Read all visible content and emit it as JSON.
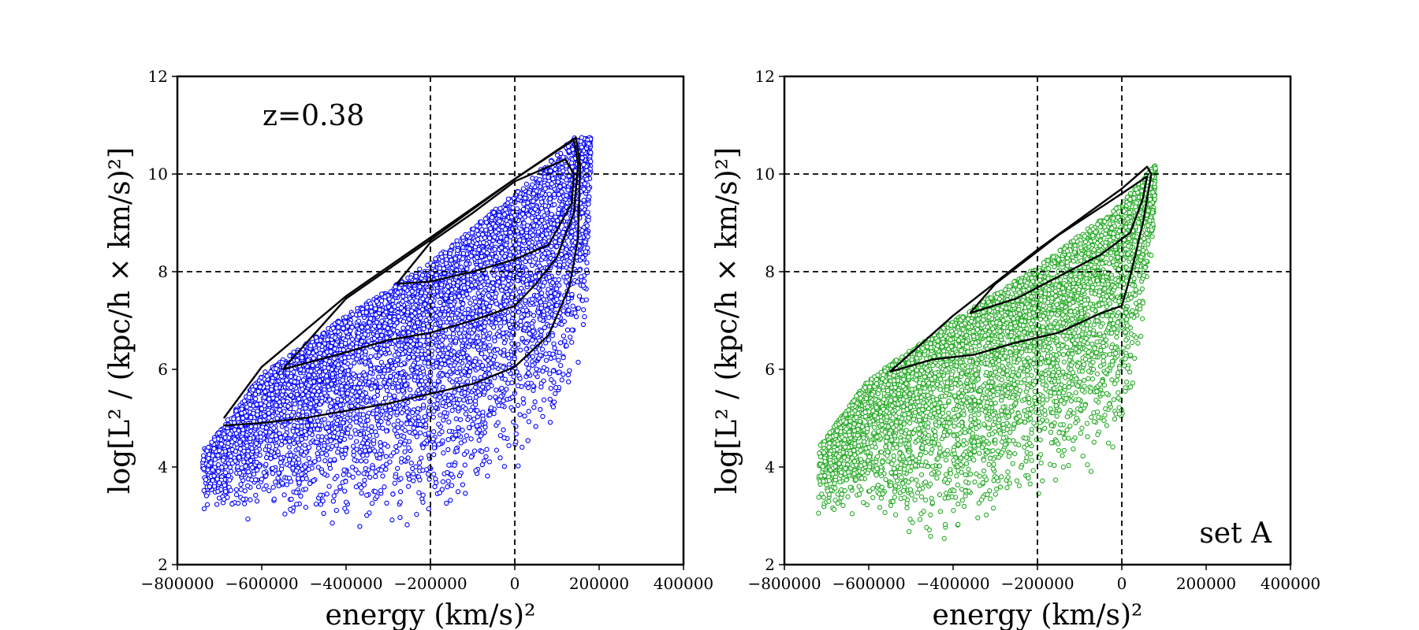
{
  "chart_data": [
    {
      "type": "scatter",
      "panel": "left",
      "marker_color": "#0000ff",
      "xlabel": "energy   (km/s)²",
      "ylabel": "log[L² / (kpc/h × km/s)²]",
      "xlim": [
        -800000,
        400000
      ],
      "ylim": [
        2,
        12
      ],
      "xticks": [
        -800000,
        -600000,
        -400000,
        -200000,
        0,
        200000,
        400000
      ],
      "xtick_labels": [
        "−800000",
        "−600000",
        "−400000",
        "−200000",
        "0",
        "200000",
        "400000"
      ],
      "yticks": [
        2,
        4,
        6,
        8,
        10,
        12
      ],
      "ytick_labels": [
        "2",
        "4",
        "6",
        "8",
        "10",
        "12"
      ],
      "reference_lines": {
        "x": [
          -200000,
          0
        ],
        "y": [
          8,
          10
        ]
      },
      "annotation": "z=0.38",
      "annotation_position": "top-left",
      "point_cloud": {
        "approx_points": 6000,
        "upper_envelope": [
          [
            -730000,
            4.4
          ],
          [
            -600000,
            5.9
          ],
          [
            -400000,
            7.1
          ],
          [
            -200000,
            8.2
          ],
          [
            0,
            9.6
          ],
          [
            100000,
            10.4
          ],
          [
            140000,
            10.75
          ]
        ],
        "lower_envelope": [
          [
            -730000,
            3.0
          ],
          [
            -600000,
            2.8
          ],
          [
            -400000,
            2.6
          ],
          [
            -200000,
            2.8
          ],
          [
            0,
            3.8
          ],
          [
            100000,
            4.6
          ],
          [
            170000,
            6.5
          ],
          [
            180000,
            10.0
          ]
        ],
        "min_x": -740000,
        "max_x": 180000
      },
      "contours": [
        [
          [
            -280000,
            7.75
          ],
          [
            -200000,
            7.8
          ],
          [
            -100000,
            8.0
          ],
          [
            0,
            8.25
          ],
          [
            80000,
            8.55
          ],
          [
            135000,
            9.4
          ],
          [
            140000,
            10.0
          ],
          [
            120000,
            10.3
          ],
          [
            0,
            9.85
          ],
          [
            -100000,
            9.2
          ],
          [
            -200000,
            8.6
          ],
          [
            -280000,
            7.75
          ]
        ],
        [
          [
            -550000,
            6.0
          ],
          [
            -400000,
            6.35
          ],
          [
            -300000,
            6.6
          ],
          [
            -200000,
            6.75
          ],
          [
            -100000,
            7.0
          ],
          [
            0,
            7.3
          ],
          [
            50000,
            7.75
          ],
          [
            100000,
            8.3
          ],
          [
            140000,
            9.2
          ],
          [
            150000,
            10.2
          ],
          [
            140000,
            10.7
          ],
          [
            0,
            9.9
          ],
          [
            -200000,
            8.65
          ],
          [
            -400000,
            7.45
          ],
          [
            -550000,
            6.0
          ]
        ],
        [
          [
            -690000,
            4.85
          ],
          [
            -600000,
            4.9
          ],
          [
            -500000,
            5.0
          ],
          [
            -400000,
            5.15
          ],
          [
            -300000,
            5.3
          ],
          [
            -200000,
            5.5
          ],
          [
            -100000,
            5.7
          ],
          [
            0,
            6.05
          ],
          [
            80000,
            6.7
          ],
          [
            130000,
            7.7
          ],
          [
            150000,
            8.7
          ],
          [
            155000,
            10.2
          ],
          [
            145000,
            10.75
          ],
          [
            0,
            9.9
          ],
          [
            -200000,
            8.7
          ],
          [
            -400000,
            7.5
          ],
          [
            -600000,
            6.05
          ],
          [
            -690000,
            5.0
          ]
        ]
      ]
    },
    {
      "type": "scatter",
      "panel": "right",
      "marker_color": "#22aa22",
      "xlabel": "energy   (km/s)²",
      "ylabel": "log[L² / (kpc/h × km/s)²]",
      "xlim": [
        -800000,
        400000
      ],
      "ylim": [
        2,
        12
      ],
      "xticks": [
        -800000,
        -600000,
        -400000,
        -200000,
        0,
        200000,
        400000
      ],
      "xtick_labels": [
        "−800000",
        "−600000",
        "−400000",
        "−200000",
        "0",
        "200000",
        "400000"
      ],
      "yticks": [
        2,
        4,
        6,
        8,
        10,
        12
      ],
      "ytick_labels": [
        "2",
        "4",
        "6",
        "8",
        "10",
        "12"
      ],
      "reference_lines": {
        "x": [
          -200000,
          0
        ],
        "y": [
          8,
          10
        ]
      },
      "annotation": "set A",
      "annotation_position": "bottom-right",
      "point_cloud": {
        "approx_points": 5000,
        "upper_envelope": [
          [
            -720000,
            4.4
          ],
          [
            -600000,
            5.8
          ],
          [
            -400000,
            7.0
          ],
          [
            -200000,
            8.1
          ],
          [
            0,
            9.4
          ],
          [
            60000,
            10.0
          ],
          [
            80000,
            10.2
          ]
        ],
        "lower_envelope": [
          [
            -720000,
            2.9
          ],
          [
            -600000,
            2.9
          ],
          [
            -400000,
            2.3
          ],
          [
            -200000,
            3.2
          ],
          [
            0,
            4.2
          ],
          [
            40000,
            6.0
          ],
          [
            80000,
            9.0
          ],
          [
            80000,
            10.2
          ]
        ],
        "min_x": -720000,
        "max_x": 80000
      },
      "contours": [
        [
          [
            -360000,
            7.15
          ],
          [
            -250000,
            7.45
          ],
          [
            -150000,
            7.9
          ],
          [
            -50000,
            8.35
          ],
          [
            20000,
            8.8
          ],
          [
            50000,
            9.5
          ],
          [
            60000,
            9.95
          ],
          [
            0,
            9.6
          ],
          [
            -150000,
            8.75
          ],
          [
            -300000,
            7.75
          ],
          [
            -360000,
            7.15
          ]
        ],
        [
          [
            -550000,
            5.95
          ],
          [
            -450000,
            6.2
          ],
          [
            -350000,
            6.3
          ],
          [
            -250000,
            6.55
          ],
          [
            -150000,
            6.75
          ],
          [
            -50000,
            7.15
          ],
          [
            0,
            7.3
          ],
          [
            20000,
            7.9
          ],
          [
            50000,
            9.0
          ],
          [
            70000,
            10.0
          ],
          [
            60000,
            10.15
          ],
          [
            0,
            9.7
          ],
          [
            -200000,
            8.45
          ],
          [
            -400000,
            7.1
          ],
          [
            -550000,
            5.95
          ]
        ]
      ]
    }
  ]
}
